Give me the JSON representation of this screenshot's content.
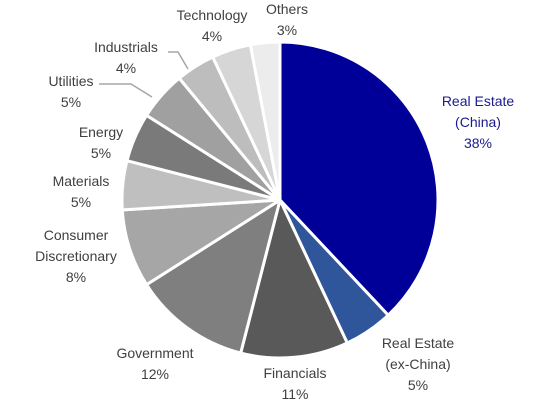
{
  "chart_data": {
    "type": "pie",
    "title": "",
    "slices": [
      {
        "label": [
          "Real Estate",
          "(China)"
        ],
        "pct_label": "38%",
        "value": 38,
        "color": "#000099",
        "label_color": "#1a1a8c"
      },
      {
        "label": [
          "Real Estate",
          "(ex-China)"
        ],
        "pct_label": "5%",
        "value": 5,
        "color": "#2f559a",
        "label_color": "#404040"
      },
      {
        "label": [
          "Financials"
        ],
        "pct_label": "11%",
        "value": 11,
        "color": "#595959",
        "label_color": "#404040"
      },
      {
        "label": [
          "Government"
        ],
        "pct_label": "12%",
        "value": 12,
        "color": "#7f7f7f",
        "label_color": "#404040"
      },
      {
        "label": [
          "Consumer",
          "Discretionary"
        ],
        "pct_label": "8%",
        "value": 8,
        "color": "#a6a6a6",
        "label_color": "#404040"
      },
      {
        "label": [
          "Materials"
        ],
        "pct_label": "5%",
        "value": 5,
        "color": "#bfbfbf",
        "label_color": "#404040"
      },
      {
        "label": [
          "Energy"
        ],
        "pct_label": "5%",
        "value": 5,
        "color": "#7a7a7a",
        "label_color": "#404040"
      },
      {
        "label": [
          "Utilities"
        ],
        "pct_label": "5%",
        "value": 5,
        "color": "#a0a0a0",
        "label_color": "#404040"
      },
      {
        "label": [
          "Industrials"
        ],
        "pct_label": "4%",
        "value": 4,
        "color": "#bdbdbd",
        "label_color": "#404040"
      },
      {
        "label": [
          "Technology"
        ],
        "pct_label": "4%",
        "value": 4,
        "color": "#d6d6d6",
        "label_color": "#404040"
      },
      {
        "label": [
          "Others"
        ],
        "pct_label": "3%",
        "value": 3,
        "color": "#ececec",
        "label_color": "#404040"
      }
    ]
  }
}
